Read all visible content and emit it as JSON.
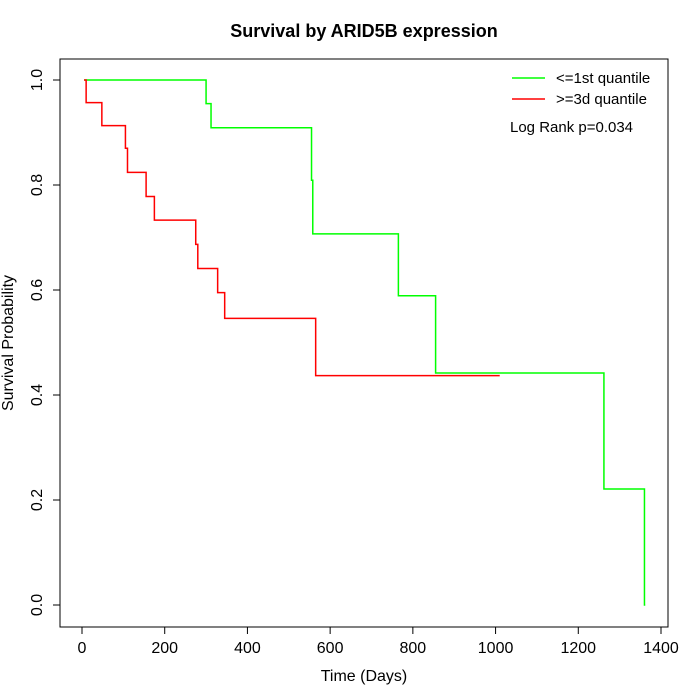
{
  "chart_data": {
    "type": "line",
    "title": "Survival by ARID5B expression",
    "xlabel": "Time (Days)",
    "ylabel": "Survival Probability",
    "xlim": [
      0,
      1400
    ],
    "ylim": [
      0,
      1.0
    ],
    "xticks": [
      0,
      200,
      400,
      600,
      800,
      1000,
      1200,
      1400
    ],
    "yticks": [
      "0.0",
      "0.2",
      "0.4",
      "0.6",
      "0.8",
      "1.0"
    ],
    "grid": false,
    "legend_position": "top-right",
    "annotation": "Log Rank p=0.034",
    "series": [
      {
        "name": "<=1st quantile",
        "color": "#00ff00",
        "step": true,
        "x": [
          5,
          300,
          312,
          555,
          558,
          765,
          855,
          1262,
          1360,
          1362
        ],
        "y": [
          1.0,
          0.955,
          0.909,
          0.809,
          0.707,
          0.589,
          0.442,
          0.221,
          0.0,
          0.0
        ]
      },
      {
        "name": ">=3d quantile",
        "color": "#ff0000",
        "step": true,
        "x": [
          5,
          10,
          48,
          105,
          110,
          155,
          175,
          275,
          280,
          328,
          345,
          565,
          1010
        ],
        "y": [
          1.0,
          0.957,
          0.913,
          0.87,
          0.824,
          0.778,
          0.733,
          0.687,
          0.641,
          0.595,
          0.546,
          0.437,
          0.437
        ]
      }
    ]
  }
}
